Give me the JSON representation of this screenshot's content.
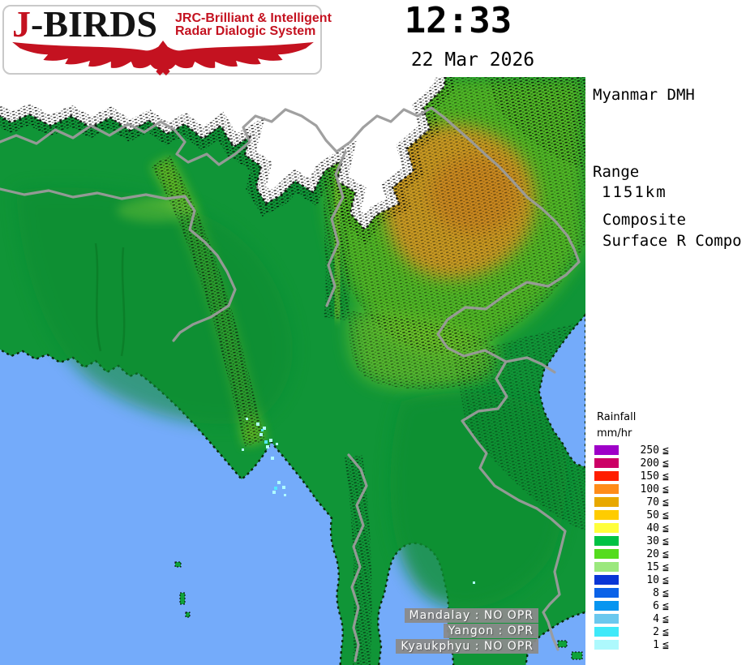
{
  "header": {
    "logo": {
      "title_j": "J",
      "title_rest": "-BIRDS",
      "subtitle1": "JRC-Brilliant & Intelligent",
      "subtitle2": "Radar  Dialogic  System"
    },
    "time": "12:33",
    "date": "22 Mar 2026"
  },
  "sidebar": {
    "station": "Myanmar DMH",
    "range_label": "Range",
    "range_value": "1151km",
    "product_line1": "Composite",
    "product_line2": "Surface R Compo"
  },
  "legend": {
    "title": "Rainfall",
    "unit": "mm/hr",
    "comparator": "≦",
    "items": [
      {
        "value": "250",
        "color": "#9e00c8"
      },
      {
        "value": "200",
        "color": "#cc0066"
      },
      {
        "value": "150",
        "color": "#ff1e00"
      },
      {
        "value": "100",
        "color": "#ff8c19"
      },
      {
        "value": "70",
        "color": "#e8a800"
      },
      {
        "value": "50",
        "color": "#ffcc00"
      },
      {
        "value": "40",
        "color": "#ffff3c"
      },
      {
        "value": "30",
        "color": "#00c244"
      },
      {
        "value": "20",
        "color": "#55dc1e"
      },
      {
        "value": "15",
        "color": "#9be87d"
      },
      {
        "value": "10",
        "color": "#0a36d6"
      },
      {
        "value": "8",
        "color": "#0b62e8"
      },
      {
        "value": "6",
        "color": "#0795f0"
      },
      {
        "value": "4",
        "color": "#6bc8ee"
      },
      {
        "value": "2",
        "color": "#3fe9f9"
      },
      {
        "value": "1",
        "color": "#adf9fd"
      }
    ]
  },
  "status_overlay": {
    "lines": [
      "Mandalay : NO OPR",
      "Yangon : OPR",
      "Kyaukphyu : NO OPR"
    ]
  },
  "map": {
    "colors": {
      "sea": "#74abfa",
      "land": "#109537",
      "snow": "#ffffff",
      "border": "#9b9b9b",
      "highland": "#5fbe22",
      "peaks_orange": "#db9322",
      "echo_light": "#affcff",
      "echo_mid": "#54e8ff"
    }
  }
}
